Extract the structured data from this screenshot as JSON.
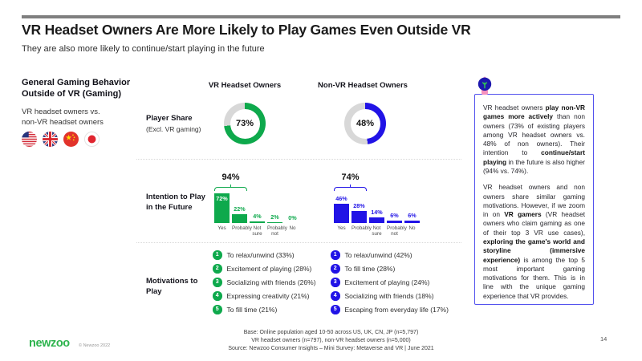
{
  "slide": {
    "title": "VR Headset Owners Are More Likely to Play Games Even Outside VR",
    "subtitle": "They are also more likely to continue/start playing in the future",
    "page_number": "14"
  },
  "left_panel": {
    "heading": "General Gaming Behavior Outside of VR (Gaming)",
    "comparison": "VR headset owners vs. non-VR headset owners",
    "flags": [
      "United States",
      "United Kingdom",
      "China",
      "Japan"
    ]
  },
  "columns": {
    "vr_label": "VR Headset Owners",
    "nonvr_label": "Non-VR Headset Owners"
  },
  "row_labels": {
    "player_share": "Player Share",
    "player_share_note": "(Excl. VR gaming)",
    "intention": "Intention to Play in the Future",
    "motivations": "Motivations to Play"
  },
  "colors": {
    "vr_green": "#0EA94C",
    "nonvr_blue": "#2113E6",
    "donut_track": "#D8D8D8",
    "box_border": "#5352EE",
    "logo_green": "#2EB44E",
    "top_bar": "#7F7F7F"
  },
  "chart_data": [
    {
      "type": "pie",
      "title": "Player Share (Excl. VR gaming)",
      "unit": "%",
      "style": "donut, remainder in gray",
      "series": [
        {
          "name": "VR Headset Owners",
          "value": 73
        },
        {
          "name": "Non-VR Headset Owners",
          "value": 48
        }
      ]
    },
    {
      "type": "bar",
      "title": "Intention to Play in the Future",
      "unit": "%",
      "ylim": [
        0,
        100
      ],
      "categories": [
        "Yes",
        "Probably",
        "Not sure",
        "Probably not",
        "No"
      ],
      "series": [
        {
          "name": "VR Headset Owners",
          "values": [
            72,
            22,
            4,
            2,
            0
          ],
          "bracket_label": "94%",
          "bracket_covers": [
            "Yes",
            "Probably"
          ]
        },
        {
          "name": "Non-VR Headset Owners",
          "values": [
            46,
            28,
            14,
            6,
            6
          ],
          "bracket_label": "74%",
          "bracket_covers": [
            "Yes",
            "Probably"
          ]
        }
      ]
    },
    {
      "type": "table",
      "title": "Motivations to Play",
      "series": [
        {
          "name": "VR Headset Owners",
          "items": [
            "To relax/unwind (33%)",
            "Excitement of playing (28%)",
            "Socializing with friends (26%)",
            "Expressing creativity (21%)",
            "To fill time (21%)"
          ]
        },
        {
          "name": "Non-VR Headset Owners",
          "items": [
            "To relax/unwind (42%)",
            "To fill time (28%)",
            "Excitement of playing (24%)",
            "Socializing with friends (18%)",
            "Escaping from everyday life (17%)"
          ]
        }
      ]
    }
  ],
  "insight_box": {
    "paragraphs": [
      [
        {
          "text": "VR headset owners ",
          "bold": false
        },
        {
          "text": "play non-VR games more actively",
          "bold": true
        },
        {
          "text": " than non owners (73% of existing players among VR headset owners vs. 48% of non owners). Their intention to ",
          "bold": false
        },
        {
          "text": "continue/start playing",
          "bold": true
        },
        {
          "text": " in the future is also higher (94% vs. 74%).",
          "bold": false
        }
      ],
      [
        {
          "text": "VR headset owners and non owners share similar gaming motivations. However, if we zoom in on ",
          "bold": false
        },
        {
          "text": "VR gamers",
          "bold": true
        },
        {
          "text": " (VR headset owners who claim gaming as one of their top 3 VR use cases), ",
          "bold": false
        },
        {
          "text": "exploring the game's world and storyline (immersive experience)",
          "bold": true
        },
        {
          "text": " is among the top 5 most important gaming motivations for them. This is in line with the unique gaming experience that VR provides.",
          "bold": false
        }
      ]
    ]
  },
  "footer": {
    "logo": "newzoo",
    "copyright": "© Newzoo 2022",
    "base_lines": [
      "Base: Online population aged 10-50 across US, UK, CN, JP (n=5,797)",
      "VR headset owners (n=797), non-VR headset owners (n=5,000)",
      "Source: Newzoo Consumer Insights – Mini Survey: Metaverse and VR | June 2021"
    ]
  }
}
